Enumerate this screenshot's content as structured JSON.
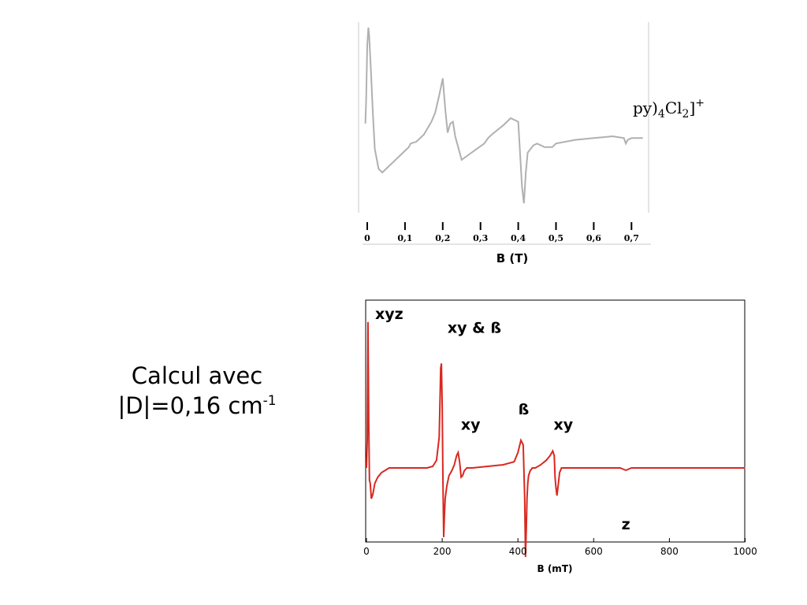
{
  "caption": {
    "line1": "Calcul avec",
    "line2_main": "|D|=0,16 cm",
    "line2_sup": "-1"
  },
  "chart_data": [
    {
      "type": "line",
      "title": "",
      "title_fragment": "py)4Cl2]+",
      "xlabel": "B (T)",
      "ylabel": "",
      "xlim": [
        0,
        0.75
      ],
      "tick_labels": [
        "0",
        "0,1",
        "0,2",
        "0,3",
        "0,4",
        "0,5",
        "0,6",
        "0,7"
      ],
      "tick_values": [
        0,
        0.1,
        0.2,
        0.3,
        0.4,
        0.5,
        0.6,
        0.7
      ],
      "line_color": "#b0b0b0",
      "grid": false,
      "series": [
        {
          "x": [
            -0.005,
            -0.003,
            0.0,
            0.003,
            0.005,
            0.01,
            0.015,
            0.02,
            0.03,
            0.04,
            0.05,
            0.07,
            0.09,
            0.11,
            0.115,
            0.13,
            0.15,
            0.17,
            0.18,
            0.19,
            0.2,
            0.207,
            0.213,
            0.22,
            0.227,
            0.233,
            0.25,
            0.27,
            0.29,
            0.31,
            0.32,
            0.33,
            0.36,
            0.38,
            0.4,
            0.405,
            0.41,
            0.415,
            0.42,
            0.425,
            0.44,
            0.45,
            0.47,
            0.49,
            0.5,
            0.55,
            0.6,
            0.65,
            0.68,
            0.685,
            0.69,
            0.7,
            0.73
          ],
          "y": [
            0.47,
            0.6,
            0.9,
            1.0,
            0.96,
            0.75,
            0.52,
            0.33,
            0.22,
            0.2,
            0.22,
            0.26,
            0.3,
            0.34,
            0.36,
            0.37,
            0.41,
            0.48,
            0.53,
            0.62,
            0.72,
            0.54,
            0.42,
            0.47,
            0.48,
            0.4,
            0.27,
            0.3,
            0.33,
            0.36,
            0.39,
            0.41,
            0.46,
            0.5,
            0.48,
            0.3,
            0.12,
            0.03,
            0.2,
            0.31,
            0.35,
            0.36,
            0.34,
            0.34,
            0.36,
            0.38,
            0.39,
            0.4,
            0.39,
            0.36,
            0.38,
            0.39,
            0.39
          ]
        }
      ]
    },
    {
      "type": "line",
      "title": "",
      "xlabel": "B (mT)",
      "ylabel": "",
      "xlim": [
        0,
        1000
      ],
      "ylim": [
        -1,
        1
      ],
      "xticks": [
        0,
        200,
        400,
        600,
        800,
        1000
      ],
      "line_color": "#d9281f",
      "grid": false,
      "annotations": [
        {
          "text": "xyz",
          "x": 60,
          "y": 0.97
        },
        {
          "text": "xy & ß",
          "x": 285,
          "y": 0.88
        },
        {
          "text": "xy",
          "x": 275,
          "y": 0.25
        },
        {
          "text": "ß",
          "x": 415,
          "y": 0.35
        },
        {
          "text": "xy",
          "x": 520,
          "y": 0.25
        },
        {
          "text": "z",
          "x": 685,
          "y": -0.4
        }
      ],
      "series": [
        {
          "x": [
            0,
            2,
            4,
            6,
            8,
            10,
            13,
            17,
            22,
            30,
            40,
            60,
            90,
            130,
            160,
            175,
            185,
            192,
            196,
            198,
            200,
            202,
            204,
            206,
            208,
            212,
            218,
            225,
            232,
            238,
            242,
            246,
            250,
            254,
            258,
            265,
            280,
            320,
            360,
            390,
            400,
            408,
            414,
            418,
            420,
            422,
            424,
            426,
            428,
            432,
            438,
            446,
            460,
            475,
            485,
            492,
            496,
            498,
            500,
            503,
            506,
            510,
            515,
            520,
            600,
            670,
            680,
            685,
            690,
            700,
            800,
            1000
          ],
          "y": [
            0.0,
            0.18,
            0.95,
            0.3,
            -0.08,
            -0.1,
            -0.2,
            -0.17,
            -0.1,
            -0.06,
            -0.03,
            0.0,
            0.0,
            0.0,
            0.0,
            0.01,
            0.05,
            0.2,
            0.65,
            0.68,
            0.4,
            -0.1,
            -0.45,
            -0.3,
            -0.2,
            -0.12,
            -0.05,
            -0.02,
            0.02,
            0.08,
            0.1,
            0.04,
            -0.06,
            -0.05,
            -0.02,
            0.0,
            0.0,
            0.01,
            0.02,
            0.04,
            0.1,
            0.18,
            0.15,
            -0.2,
            -0.58,
            -0.4,
            -0.2,
            -0.1,
            -0.05,
            -0.02,
            0.0,
            0.0,
            0.02,
            0.05,
            0.08,
            0.11,
            0.08,
            -0.06,
            -0.12,
            -0.18,
            -0.12,
            -0.03,
            0.0,
            0.0,
            0.0,
            0.0,
            -0.01,
            -0.015,
            -0.01,
            0.0,
            0.0,
            0.0
          ]
        }
      ]
    }
  ]
}
